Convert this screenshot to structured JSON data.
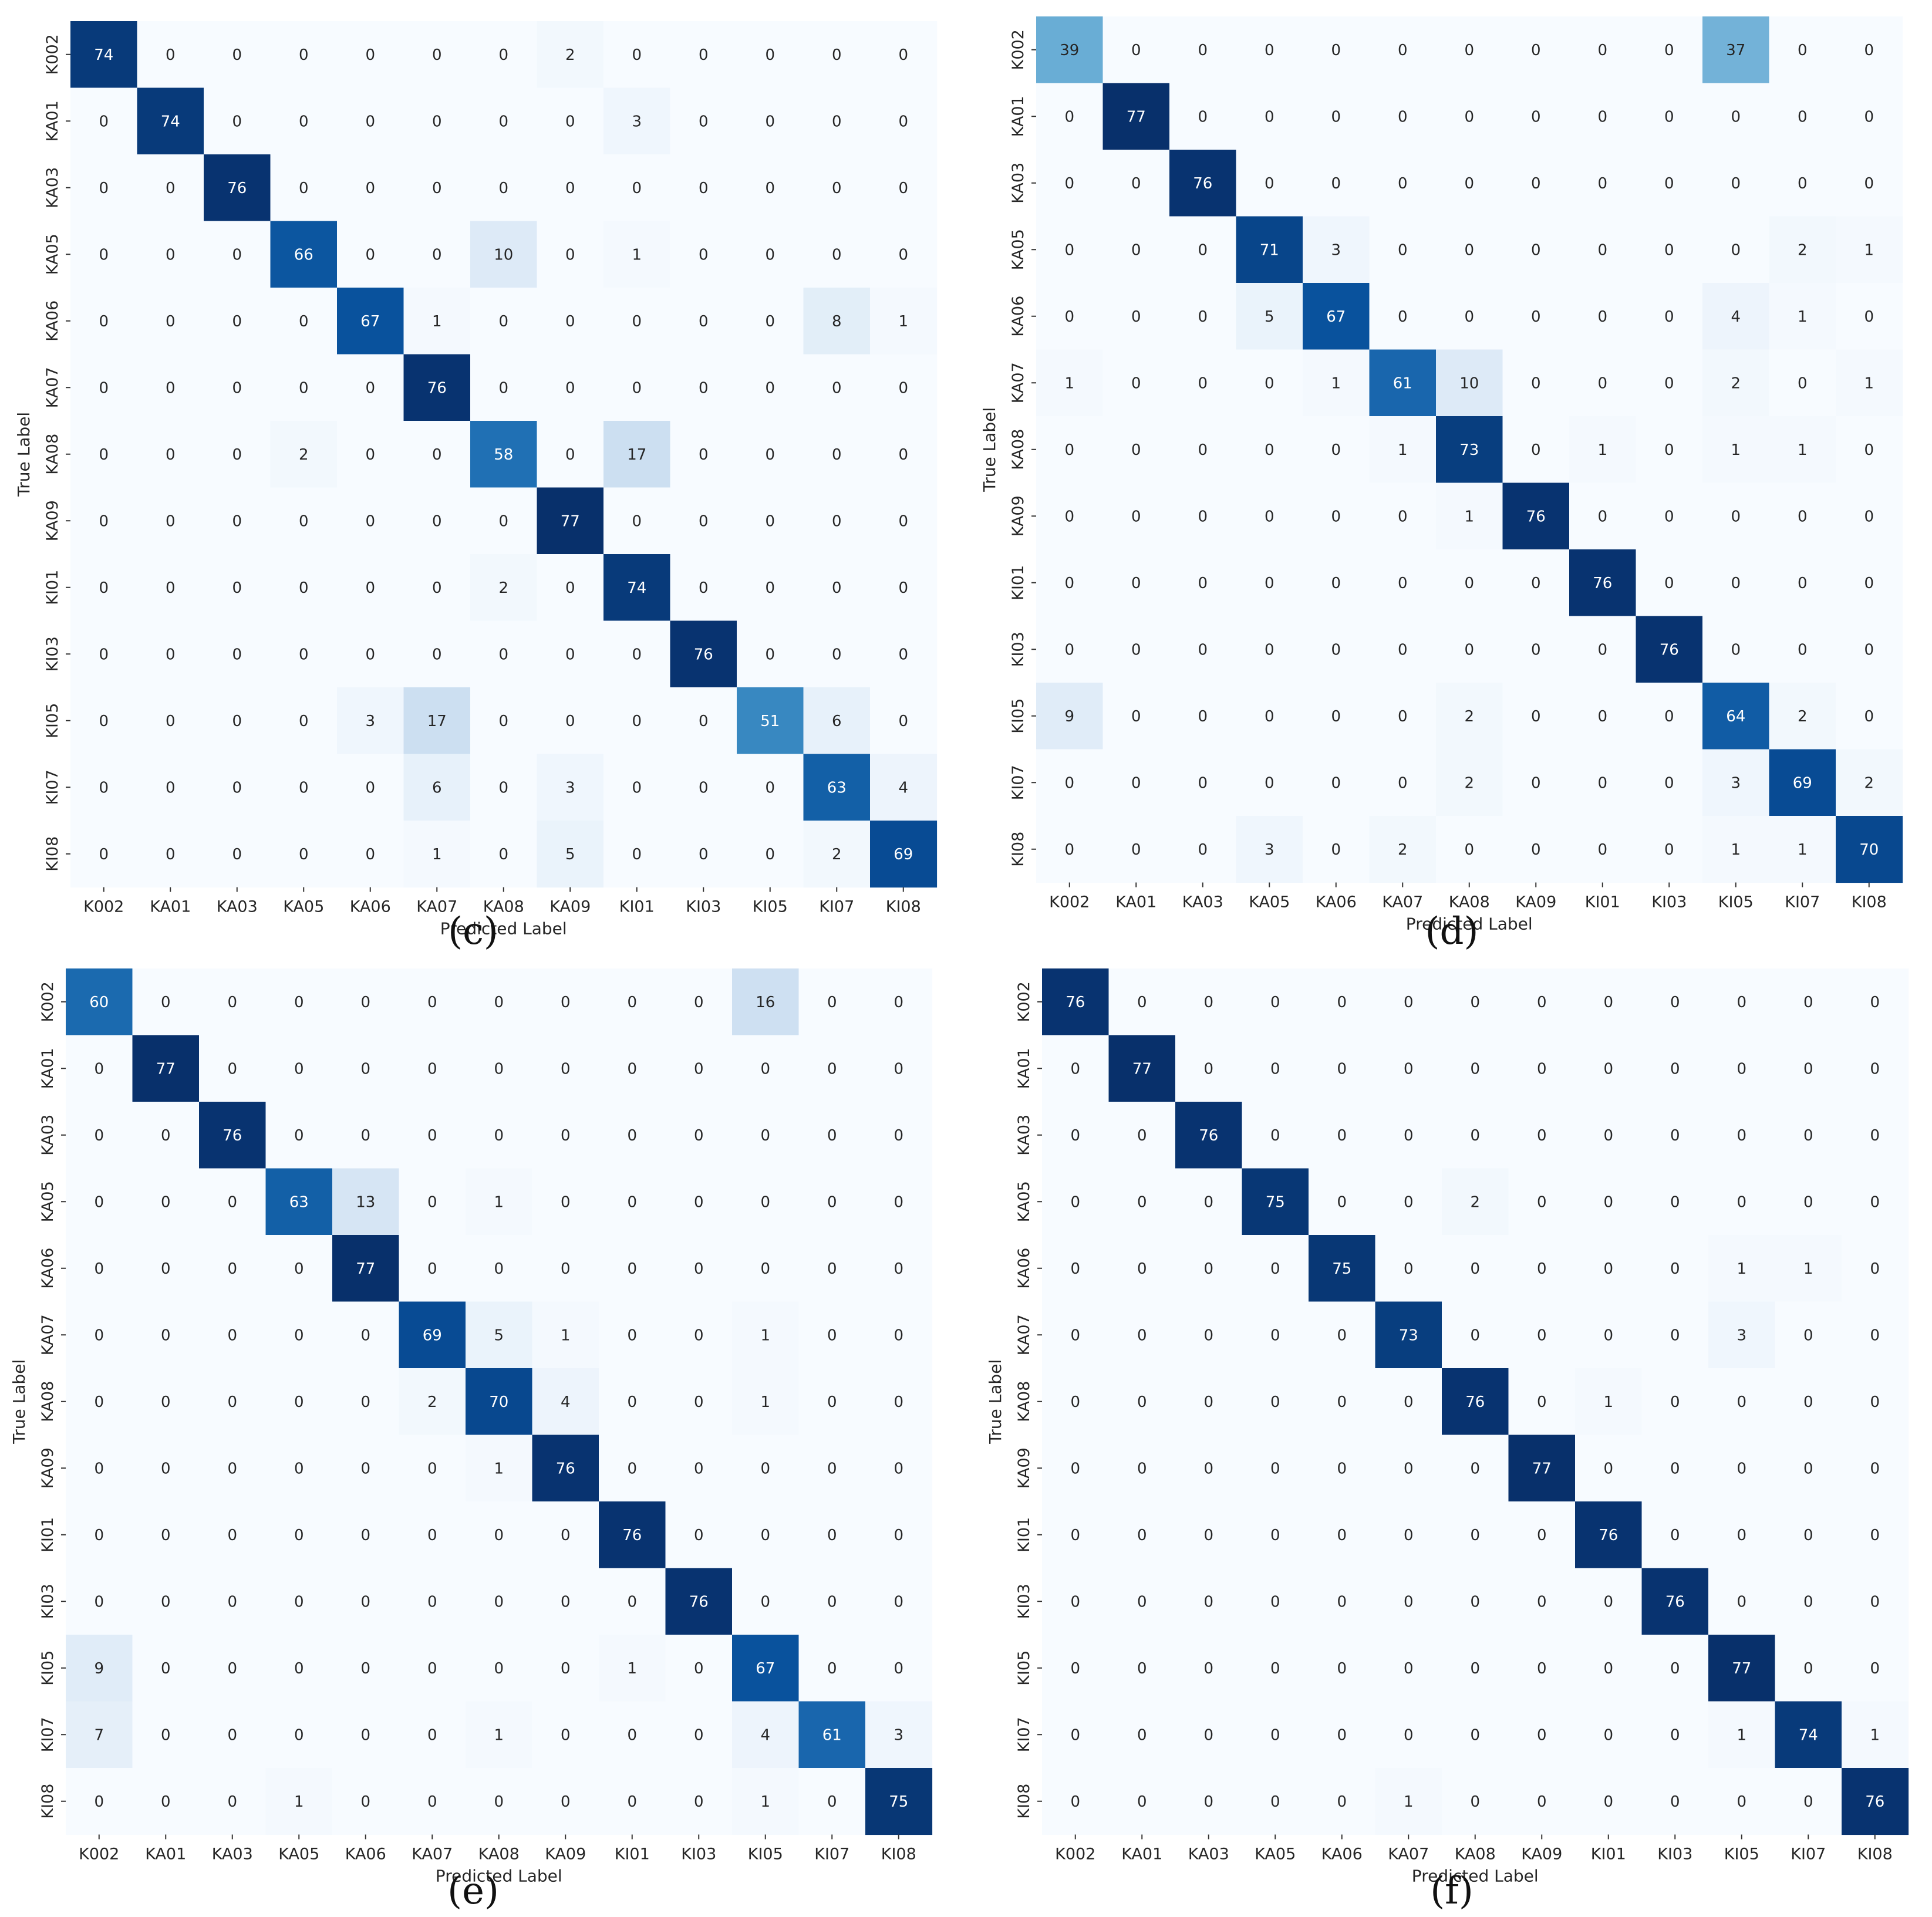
{
  "labels": [
    "K002",
    "KA01",
    "KA03",
    "KA05",
    "KA06",
    "KA07",
    "KA08",
    "KA09",
    "KI01",
    "KI03",
    "KI05",
    "KI07",
    "KI08"
  ],
  "chart_data": [
    {
      "type": "heatmap",
      "caption": "(c)",
      "xlabel": "Predicted Label",
      "ylabel": "True Label",
      "x_categories": [
        "K002",
        "KA01",
        "KA03",
        "KA05",
        "KA06",
        "KA07",
        "KA08",
        "KA09",
        "KI01",
        "KI03",
        "KI05",
        "KI07",
        "KI08"
      ],
      "y_categories": [
        "K002",
        "KA01",
        "KA03",
        "KA05",
        "KA06",
        "KA07",
        "KA08",
        "KA09",
        "KI01",
        "KI03",
        "KI05",
        "KI07",
        "KI08"
      ],
      "colorscale": "Blues",
      "vmax": 77,
      "matrix": [
        [
          74,
          0,
          0,
          0,
          0,
          0,
          0,
          2,
          0,
          0,
          0,
          0,
          0
        ],
        [
          0,
          74,
          0,
          0,
          0,
          0,
          0,
          0,
          3,
          0,
          0,
          0,
          0
        ],
        [
          0,
          0,
          76,
          0,
          0,
          0,
          0,
          0,
          0,
          0,
          0,
          0,
          0
        ],
        [
          0,
          0,
          0,
          66,
          0,
          0,
          10,
          0,
          1,
          0,
          0,
          0,
          0
        ],
        [
          0,
          0,
          0,
          0,
          67,
          1,
          0,
          0,
          0,
          0,
          0,
          8,
          1
        ],
        [
          0,
          0,
          0,
          0,
          0,
          76,
          0,
          0,
          0,
          0,
          0,
          0,
          0
        ],
        [
          0,
          0,
          0,
          2,
          0,
          0,
          58,
          0,
          17,
          0,
          0,
          0,
          0
        ],
        [
          0,
          0,
          0,
          0,
          0,
          0,
          0,
          77,
          0,
          0,
          0,
          0,
          0
        ],
        [
          0,
          0,
          0,
          0,
          0,
          0,
          2,
          0,
          74,
          0,
          0,
          0,
          0
        ],
        [
          0,
          0,
          0,
          0,
          0,
          0,
          0,
          0,
          0,
          76,
          0,
          0,
          0
        ],
        [
          0,
          0,
          0,
          0,
          3,
          17,
          0,
          0,
          0,
          0,
          51,
          6,
          0
        ],
        [
          0,
          0,
          0,
          0,
          0,
          6,
          0,
          3,
          0,
          0,
          0,
          63,
          4
        ],
        [
          0,
          0,
          0,
          0,
          0,
          1,
          0,
          5,
          0,
          0,
          0,
          2,
          69
        ]
      ]
    },
    {
      "type": "heatmap",
      "caption": "(d)",
      "xlabel": "Predicted Label",
      "ylabel": "True Label",
      "x_categories": [
        "K002",
        "KA01",
        "KA03",
        "KA05",
        "KA06",
        "KA07",
        "KA08",
        "KA09",
        "KI01",
        "KI03",
        "KI05",
        "KI07",
        "KI08"
      ],
      "y_categories": [
        "K002",
        "KA01",
        "KA03",
        "KA05",
        "KA06",
        "KA07",
        "KA08",
        "KA09",
        "KI01",
        "KI03",
        "KI05",
        "KI07",
        "KI08"
      ],
      "colorscale": "Blues",
      "vmax": 77,
      "matrix": [
        [
          39,
          0,
          0,
          0,
          0,
          0,
          0,
          0,
          0,
          0,
          37,
          0,
          0
        ],
        [
          0,
          77,
          0,
          0,
          0,
          0,
          0,
          0,
          0,
          0,
          0,
          0,
          0
        ],
        [
          0,
          0,
          76,
          0,
          0,
          0,
          0,
          0,
          0,
          0,
          0,
          0,
          0
        ],
        [
          0,
          0,
          0,
          71,
          3,
          0,
          0,
          0,
          0,
          0,
          0,
          2,
          1
        ],
        [
          0,
          0,
          0,
          5,
          67,
          0,
          0,
          0,
          0,
          0,
          4,
          1,
          0
        ],
        [
          1,
          0,
          0,
          0,
          1,
          61,
          10,
          0,
          0,
          0,
          2,
          0,
          1
        ],
        [
          0,
          0,
          0,
          0,
          0,
          1,
          73,
          0,
          1,
          0,
          1,
          1,
          0
        ],
        [
          0,
          0,
          0,
          0,
          0,
          0,
          1,
          76,
          0,
          0,
          0,
          0,
          0
        ],
        [
          0,
          0,
          0,
          0,
          0,
          0,
          0,
          0,
          76,
          0,
          0,
          0,
          0
        ],
        [
          0,
          0,
          0,
          0,
          0,
          0,
          0,
          0,
          0,
          76,
          0,
          0,
          0
        ],
        [
          9,
          0,
          0,
          0,
          0,
          0,
          2,
          0,
          0,
          0,
          64,
          2,
          0
        ],
        [
          0,
          0,
          0,
          0,
          0,
          0,
          2,
          0,
          0,
          0,
          3,
          69,
          2
        ],
        [
          0,
          0,
          0,
          3,
          0,
          2,
          0,
          0,
          0,
          0,
          1,
          1,
          70
        ]
      ]
    },
    {
      "type": "heatmap",
      "caption": "(e)",
      "xlabel": "Predicted Label",
      "ylabel": "True Label",
      "x_categories": [
        "K002",
        "KA01",
        "KA03",
        "KA05",
        "KA06",
        "KA07",
        "KA08",
        "KA09",
        "KI01",
        "KI03",
        "KI05",
        "KI07",
        "KI08"
      ],
      "y_categories": [
        "K002",
        "KA01",
        "KA03",
        "KA05",
        "KA06",
        "KA07",
        "KA08",
        "KA09",
        "KI01",
        "KI03",
        "KI05",
        "KI07",
        "KI08"
      ],
      "colorscale": "Blues",
      "vmax": 77,
      "matrix": [
        [
          60,
          0,
          0,
          0,
          0,
          0,
          0,
          0,
          0,
          0,
          16,
          0,
          0
        ],
        [
          0,
          77,
          0,
          0,
          0,
          0,
          0,
          0,
          0,
          0,
          0,
          0,
          0
        ],
        [
          0,
          0,
          76,
          0,
          0,
          0,
          0,
          0,
          0,
          0,
          0,
          0,
          0
        ],
        [
          0,
          0,
          0,
          63,
          13,
          0,
          1,
          0,
          0,
          0,
          0,
          0,
          0
        ],
        [
          0,
          0,
          0,
          0,
          77,
          0,
          0,
          0,
          0,
          0,
          0,
          0,
          0
        ],
        [
          0,
          0,
          0,
          0,
          0,
          69,
          5,
          1,
          0,
          0,
          1,
          0,
          0
        ],
        [
          0,
          0,
          0,
          0,
          0,
          2,
          70,
          4,
          0,
          0,
          1,
          0,
          0
        ],
        [
          0,
          0,
          0,
          0,
          0,
          0,
          1,
          76,
          0,
          0,
          0,
          0,
          0
        ],
        [
          0,
          0,
          0,
          0,
          0,
          0,
          0,
          0,
          76,
          0,
          0,
          0,
          0
        ],
        [
          0,
          0,
          0,
          0,
          0,
          0,
          0,
          0,
          0,
          76,
          0,
          0,
          0
        ],
        [
          9,
          0,
          0,
          0,
          0,
          0,
          0,
          0,
          1,
          0,
          67,
          0,
          0
        ],
        [
          7,
          0,
          0,
          0,
          0,
          0,
          1,
          0,
          0,
          0,
          4,
          61,
          3
        ],
        [
          0,
          0,
          0,
          1,
          0,
          0,
          0,
          0,
          0,
          0,
          1,
          0,
          75
        ]
      ]
    },
    {
      "type": "heatmap",
      "caption": "(f)",
      "xlabel": "Predicted Label",
      "ylabel": "True Label",
      "x_categories": [
        "K002",
        "KA01",
        "KA03",
        "KA05",
        "KA06",
        "KA07",
        "KA08",
        "KA09",
        "KI01",
        "KI03",
        "KI05",
        "KI07",
        "KI08"
      ],
      "y_categories": [
        "K002",
        "KA01",
        "KA03",
        "KA05",
        "KA06",
        "KA07",
        "KA08",
        "KA09",
        "KI01",
        "KI03",
        "KI05",
        "KI07",
        "KI08"
      ],
      "colorscale": "Blues",
      "vmax": 77,
      "matrix": [
        [
          76,
          0,
          0,
          0,
          0,
          0,
          0,
          0,
          0,
          0,
          0,
          0,
          0
        ],
        [
          0,
          77,
          0,
          0,
          0,
          0,
          0,
          0,
          0,
          0,
          0,
          0,
          0
        ],
        [
          0,
          0,
          76,
          0,
          0,
          0,
          0,
          0,
          0,
          0,
          0,
          0,
          0
        ],
        [
          0,
          0,
          0,
          75,
          0,
          0,
          2,
          0,
          0,
          0,
          0,
          0,
          0
        ],
        [
          0,
          0,
          0,
          0,
          75,
          0,
          0,
          0,
          0,
          0,
          1,
          1,
          0
        ],
        [
          0,
          0,
          0,
          0,
          0,
          73,
          0,
          0,
          0,
          0,
          3,
          0,
          0
        ],
        [
          0,
          0,
          0,
          0,
          0,
          0,
          76,
          0,
          1,
          0,
          0,
          0,
          0
        ],
        [
          0,
          0,
          0,
          0,
          0,
          0,
          0,
          77,
          0,
          0,
          0,
          0,
          0
        ],
        [
          0,
          0,
          0,
          0,
          0,
          0,
          0,
          0,
          76,
          0,
          0,
          0,
          0
        ],
        [
          0,
          0,
          0,
          0,
          0,
          0,
          0,
          0,
          0,
          76,
          0,
          0,
          0
        ],
        [
          0,
          0,
          0,
          0,
          0,
          0,
          0,
          0,
          0,
          0,
          77,
          0,
          0
        ],
        [
          0,
          0,
          0,
          0,
          0,
          0,
          0,
          0,
          0,
          0,
          1,
          74,
          1
        ],
        [
          0,
          0,
          0,
          0,
          0,
          1,
          0,
          0,
          0,
          0,
          0,
          0,
          76
        ]
      ]
    }
  ]
}
